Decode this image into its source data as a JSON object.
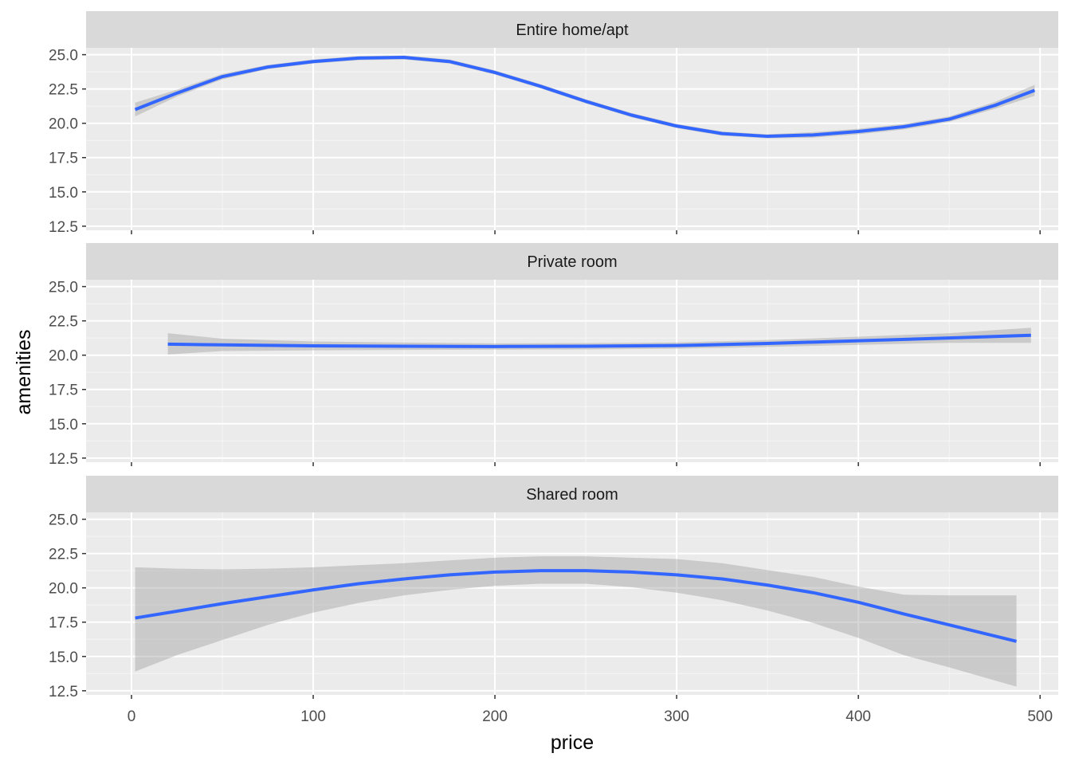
{
  "chart_data": {
    "type": "line",
    "xlabel": "price",
    "ylabel": "amenities",
    "xlim": [
      -25,
      510
    ],
    "ylim": [
      12.2,
      25.5
    ],
    "x_ticks": [
      {
        "value": 0,
        "label": "0"
      },
      {
        "value": 100,
        "label": "100"
      },
      {
        "value": 200,
        "label": "200"
      },
      {
        "value": 300,
        "label": "300"
      },
      {
        "value": 400,
        "label": "400"
      },
      {
        "value": 500,
        "label": "500"
      }
    ],
    "y_ticks": [
      {
        "value": 12.5,
        "label": "12.5"
      },
      {
        "value": 15.0,
        "label": "15.0"
      },
      {
        "value": 17.5,
        "label": "17.5"
      },
      {
        "value": 20.0,
        "label": "20.0"
      },
      {
        "value": 22.5,
        "label": "22.5"
      },
      {
        "value": 25.0,
        "label": "25.0"
      }
    ],
    "grid": true,
    "line_color": "#3366FF",
    "band_color": "#999999",
    "panel_background": "#EBEBEB",
    "strip_background": "#D9D9D9",
    "panels": [
      {
        "label": "Entire home/apt",
        "x": [
          2,
          25,
          50,
          75,
          100,
          125,
          150,
          175,
          200,
          225,
          250,
          275,
          300,
          325,
          350,
          375,
          400,
          425,
          450,
          475,
          497
        ],
        "y": [
          21.0,
          22.2,
          23.4,
          24.1,
          24.5,
          24.75,
          24.8,
          24.5,
          23.7,
          22.7,
          21.6,
          20.6,
          19.8,
          19.25,
          19.05,
          19.15,
          19.4,
          19.75,
          20.3,
          21.3,
          22.4
        ],
        "lower": [
          20.5,
          21.95,
          23.2,
          23.95,
          24.35,
          24.6,
          24.65,
          24.35,
          23.55,
          22.55,
          21.45,
          20.45,
          19.65,
          19.1,
          18.9,
          18.95,
          19.2,
          19.55,
          20.1,
          21.05,
          22.0
        ],
        "upper": [
          21.5,
          22.45,
          23.6,
          24.25,
          24.65,
          24.9,
          24.95,
          24.65,
          23.85,
          22.85,
          21.75,
          20.75,
          19.95,
          19.4,
          19.2,
          19.35,
          19.6,
          19.95,
          20.5,
          21.55,
          22.8
        ]
      },
      {
        "label": "Private room",
        "x": [
          20,
          50,
          100,
          150,
          200,
          250,
          300,
          350,
          400,
          450,
          495
        ],
        "y": [
          20.8,
          20.75,
          20.68,
          20.65,
          20.63,
          20.65,
          20.7,
          20.85,
          21.05,
          21.25,
          21.45
        ],
        "lower": [
          20.05,
          20.3,
          20.35,
          20.38,
          20.4,
          20.42,
          20.47,
          20.6,
          20.75,
          20.9,
          20.9
        ],
        "upper": [
          21.6,
          21.2,
          21.0,
          20.92,
          20.86,
          20.88,
          20.93,
          21.1,
          21.35,
          21.6,
          22.0
        ]
      },
      {
        "label": "Shared room",
        "x": [
          2,
          25,
          50,
          75,
          100,
          125,
          150,
          175,
          200,
          225,
          250,
          275,
          300,
          325,
          350,
          375,
          400,
          425,
          450,
          487
        ],
        "y": [
          17.8,
          18.3,
          18.85,
          19.35,
          19.85,
          20.3,
          20.65,
          20.95,
          21.15,
          21.25,
          21.25,
          21.15,
          20.95,
          20.65,
          20.2,
          19.65,
          18.95,
          18.1,
          17.3,
          16.1
        ],
        "lower": [
          13.9,
          15.1,
          16.2,
          17.3,
          18.2,
          18.9,
          19.45,
          19.85,
          20.15,
          20.3,
          20.3,
          20.05,
          19.65,
          19.1,
          18.35,
          17.45,
          16.35,
          15.1,
          14.2,
          12.8
        ],
        "upper": [
          21.5,
          21.4,
          21.35,
          21.4,
          21.5,
          21.65,
          21.8,
          22.0,
          22.2,
          22.3,
          22.3,
          22.2,
          22.1,
          21.8,
          21.3,
          20.8,
          20.1,
          19.5,
          19.45,
          19.45
        ]
      }
    ]
  }
}
